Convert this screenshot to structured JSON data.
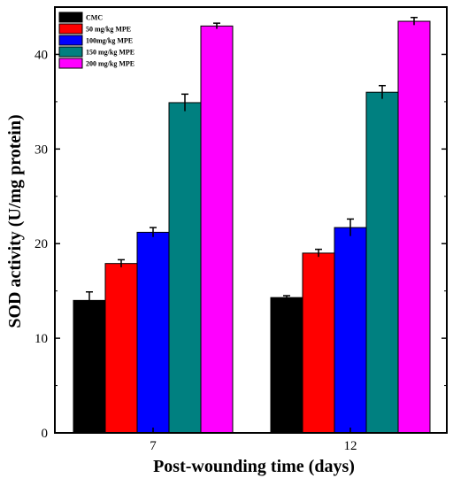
{
  "chart_data": {
    "type": "bar",
    "title": "",
    "xlabel": "Post-wounding time (days)",
    "ylabel": "SOD activity (U/mg protein)",
    "categories": [
      "7",
      "12"
    ],
    "ylim": [
      0,
      45
    ],
    "yticks": [
      0,
      10,
      20,
      30,
      40
    ],
    "legend_position": "top-left",
    "grid": false,
    "series": [
      {
        "name": "CMC",
        "color": "#000000",
        "values": [
          14.0,
          14.3
        ],
        "errors": [
          0.9,
          0.2
        ]
      },
      {
        "name": "50 mg/kg MPE",
        "color": "#ff0000",
        "values": [
          17.9,
          19.0
        ],
        "errors": [
          0.4,
          0.4
        ]
      },
      {
        "name": "100mg/kg MPE",
        "color": "#0000ff",
        "values": [
          21.2,
          21.7
        ],
        "errors": [
          0.5,
          0.9
        ]
      },
      {
        "name": "150 mg/kg MPE",
        "color": "#008080",
        "values": [
          34.9,
          36.0
        ],
        "errors": [
          0.9,
          0.7
        ]
      },
      {
        "name": "200 mg/kg MPE",
        "color": "#ff00ff",
        "values": [
          43.0,
          43.5
        ],
        "errors": [
          0.3,
          0.4
        ]
      }
    ]
  }
}
